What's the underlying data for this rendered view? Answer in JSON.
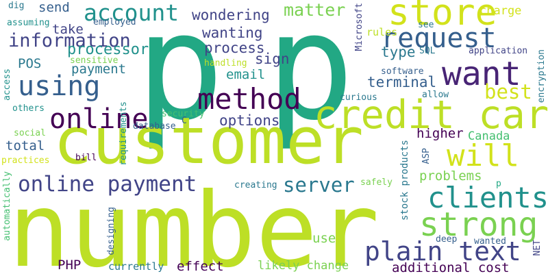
{
  "cloud": {
    "palette": [
      "#440154",
      "#482475",
      "#414487",
      "#355f8d",
      "#2a788e",
      "#21918c",
      "#22a884",
      "#44bf70",
      "#7ad151",
      "#bddf26",
      "#d2e21b"
    ],
    "words": [
      "p",
      "customer",
      "number",
      "credit card",
      "want",
      "store",
      "request",
      "method",
      "using",
      "strong",
      "clients",
      "online payment",
      "plain text",
      "will",
      "online",
      "account",
      "server",
      "information",
      "matter",
      "processor",
      "wondering",
      "process",
      "wanting",
      "charge",
      "send",
      "take",
      "payment",
      "email",
      "options",
      "terminal",
      "type",
      "best",
      "rules",
      "POS",
      "sign",
      "higher",
      "Canada",
      "total",
      "problems",
      "use",
      "PHP",
      "effect",
      "additional cost",
      "likely change",
      "currently",
      "Microsoft",
      "SQL",
      "application",
      "software",
      "encryption",
      "assuming",
      "dig",
      "employed",
      "see",
      "access",
      "others",
      "handling",
      "sensitive",
      "requirements",
      "security",
      "database",
      "C",
      "allow",
      "curious",
      "social",
      "practices",
      "bill",
      "stock products",
      "ASP",
      "NET",
      "automatically",
      "designing",
      "creating",
      "safely",
      "deep",
      "wanted",
      "p"
    ]
  }
}
